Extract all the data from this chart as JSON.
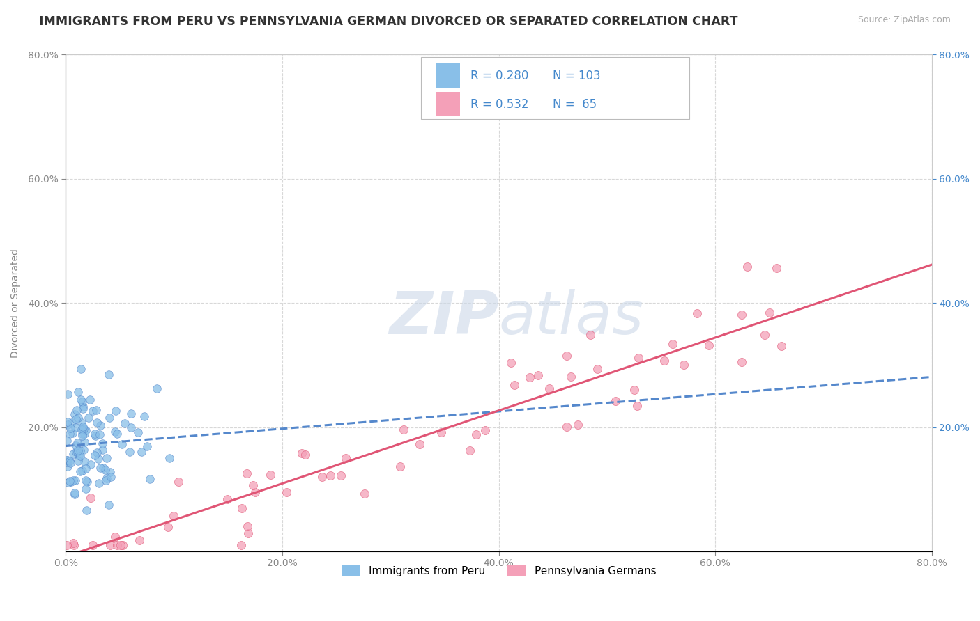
{
  "title": "IMMIGRANTS FROM PERU VS PENNSYLVANIA GERMAN DIVORCED OR SEPARATED CORRELATION CHART",
  "source_text": "Source: ZipAtlas.com",
  "ylabel": "Divorced or Separated",
  "xlim": [
    0.0,
    0.8
  ],
  "ylim": [
    0.0,
    0.8
  ],
  "xticks": [
    0.0,
    0.2,
    0.4,
    0.6,
    0.8
  ],
  "yticks": [
    0.2,
    0.4,
    0.6,
    0.8
  ],
  "xticklabels": [
    "0.0%",
    "20.0%",
    "40.0%",
    "60.0%",
    "80.0%"
  ],
  "yticklabels": [
    "20.0%",
    "40.0%",
    "60.0%",
    "80.0%"
  ],
  "legend1_label": "Immigrants from Peru",
  "legend2_label": "Pennsylvania Germans",
  "R1": 0.28,
  "N1": 103,
  "R2": 0.532,
  "N2": 65,
  "color1": "#89bfe8",
  "color2": "#f4a0b8",
  "trendline1_color": "#5588cc",
  "trendline2_color": "#e05575",
  "background_color": "#ffffff",
  "grid_color": "#d8d8d8",
  "watermark_color": "#ccd8e8",
  "title_fontsize": 12.5,
  "axis_label_fontsize": 10,
  "tick_fontsize": 10,
  "legend_fontsize": 12,
  "right_tick_color": "#4488cc",
  "left_tick_color": "#888888"
}
